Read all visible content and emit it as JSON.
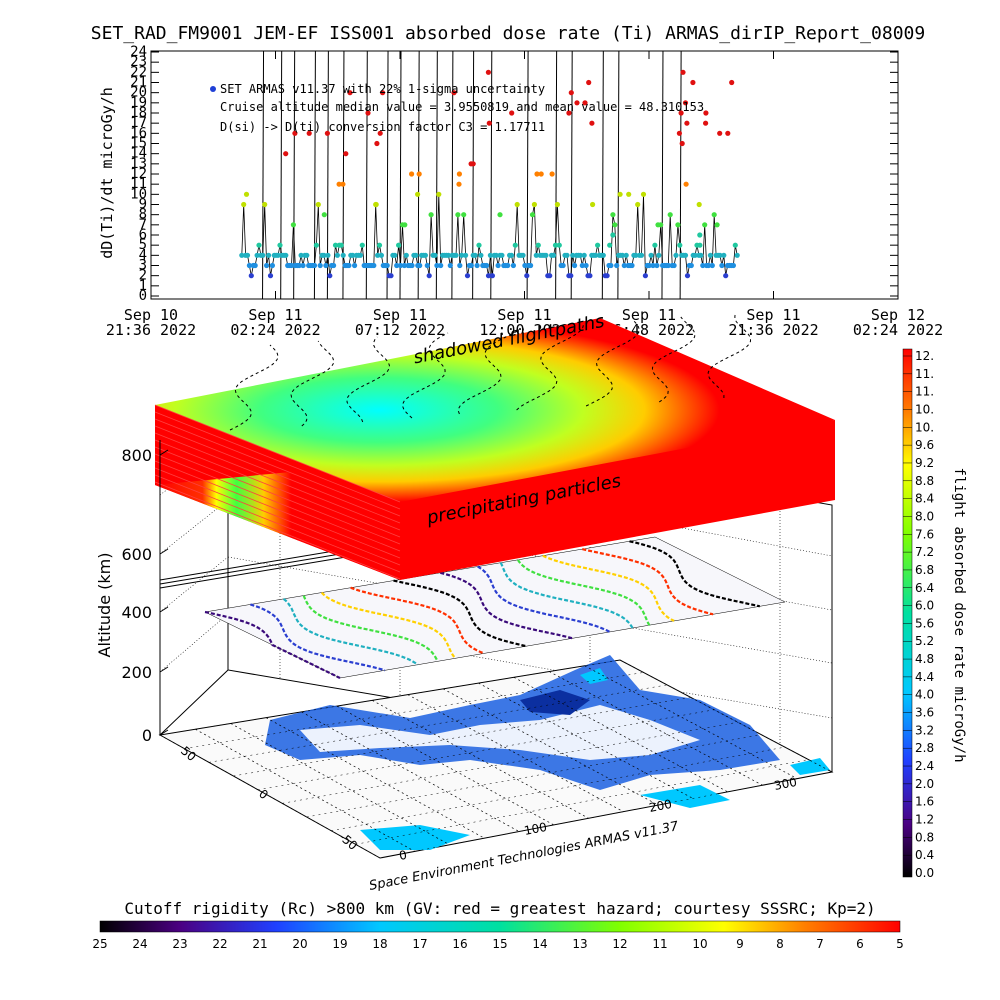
{
  "title": "SET_RAD_FM9001  JEM-EF ISS001 absorbed dose rate (Ti) ARMAS_dirIP_Report_08009",
  "chart_data": [
    {
      "type": "scatter",
      "ylabel": "dD(Ti)/dt microGy/h",
      "ylim": [
        0,
        24
      ],
      "yticks": [
        "0",
        "1",
        "2",
        "3",
        "4",
        "5",
        "6",
        "7",
        "8",
        "9",
        "10",
        "11",
        "12",
        "13",
        "14",
        "15",
        "16",
        "17",
        "18",
        "19",
        "20",
        "21",
        "22",
        "23",
        "24"
      ],
      "xticks": [
        {
          "line1": "Sep 10",
          "line2": "21:36 2022"
        },
        {
          "line1": "Sep 11",
          "line2": "02:24 2022"
        },
        {
          "line1": "Sep 11",
          "line2": "07:12 2022"
        },
        {
          "line1": "Sep 11",
          "line2": "12:00 2022"
        },
        {
          "line1": "Sep 11",
          "line2": "16:48 2022"
        },
        {
          "line1": "Sep 11",
          "line2": "21:36 2022"
        },
        {
          "line1": "Sep 12",
          "line2": "02:24 2022"
        }
      ],
      "xlim_hours": [
        0,
        28.8
      ],
      "data_start_hours": 3.5,
      "data_end_hours": 22.6,
      "annotations": {
        "legend": "SET ARMAS v11.37 with 22% 1-sigma uncertainty",
        "median_line": "Cruise altitude median value = 3.9550819 and mean value = 48.310153",
        "conversion_line": "D(si) -> D(ti) conversion factor C3 = 1.17711"
      },
      "legend_marker_color": "#1f3fd6"
    },
    {
      "type": "surface-3d",
      "zlabel": "Altitude (km)",
      "zticks": [
        "0",
        "200",
        "400",
        "600",
        "800"
      ],
      "xticks": [
        "0",
        "100",
        "200",
        "300"
      ],
      "yticks": [
        "-50",
        "0",
        "50"
      ],
      "layer_labels": {
        "top": "shadowed flightpaths",
        "middle": "precipitating particles"
      },
      "credit": "Space Environment Technologies ARMAS v11.37"
    },
    {
      "type": "colorbar",
      "label": "flight absorbed dose rate microGy/h",
      "ticks": [
        "12.",
        "11.",
        "11.",
        "10.",
        "10.",
        "9.6",
        "9.2",
        "8.8",
        "8.4",
        "8.0",
        "7.6",
        "7.2",
        "6.8",
        "6.4",
        "6.0",
        "5.6",
        "5.2",
        "4.8",
        "4.4",
        "4.0",
        "3.6",
        "3.2",
        "2.8",
        "2.4",
        "2.0",
        "1.6",
        "1.2",
        "0.8",
        "0.4",
        "0.0"
      ]
    },
    {
      "type": "colorbar",
      "label": "Cutoff rigidity (Rc) >800 km (GV: red = greatest hazard; courtesy SSSRC; Kp=2)",
      "ticks": [
        "25",
        "24",
        "23",
        "22",
        "21",
        "20",
        "19",
        "18",
        "17",
        "16",
        "15",
        "14",
        "13",
        "12",
        "11",
        "10",
        "9",
        "8",
        "7",
        "6",
        "5"
      ]
    }
  ]
}
